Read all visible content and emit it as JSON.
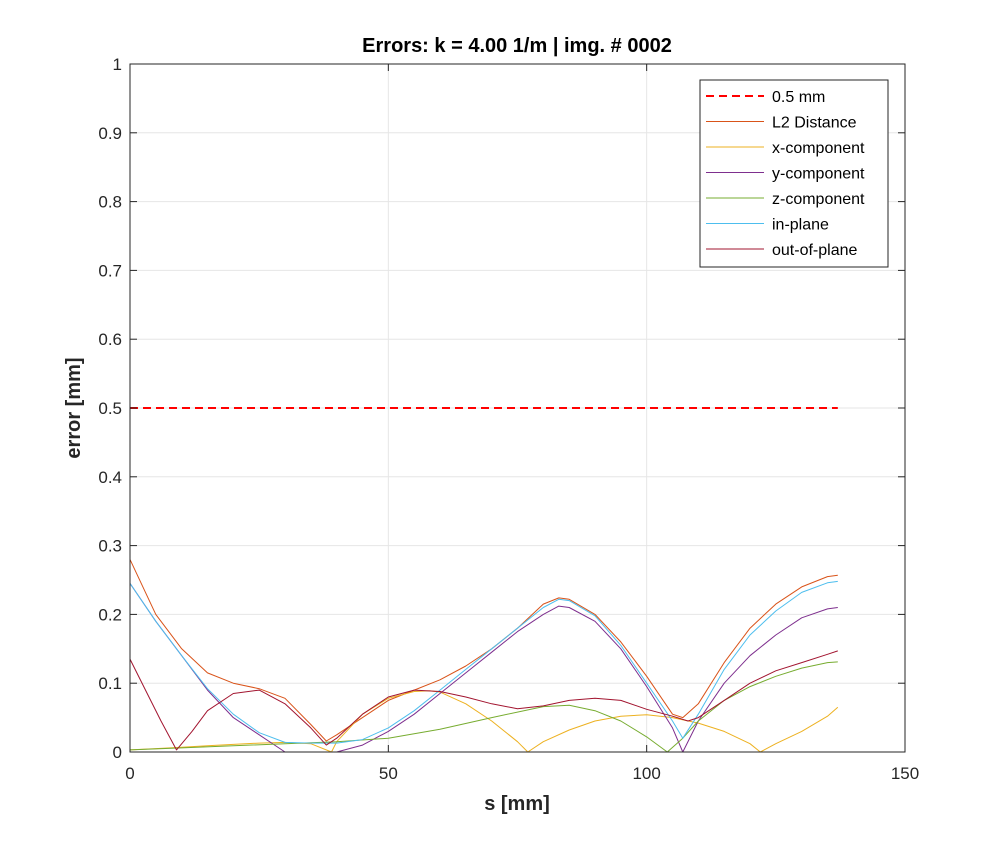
{
  "chart_data": {
    "type": "line",
    "title": "Errors: k = 4.00 1/m | img. # 0002",
    "xlabel": "s [mm]",
    "ylabel": "error [mm]",
    "xlim": [
      0,
      150
    ],
    "ylim": [
      0,
      1
    ],
    "xticks": [
      0,
      50,
      100,
      150
    ],
    "yticks": [
      0,
      0.1,
      0.2,
      0.3,
      0.4,
      0.5,
      0.6,
      0.7,
      0.8,
      0.9,
      1
    ],
    "grid": true,
    "legend_position": "top-right",
    "series": [
      {
        "name": "0.5 mm",
        "color": "#ff0000",
        "dashed": true,
        "x": [
          0,
          137
        ],
        "y": [
          0.5,
          0.5
        ]
      },
      {
        "name": "L2 Distance",
        "color": "#d95319",
        "x": [
          0,
          5,
          10,
          15,
          20,
          25,
          30,
          35,
          38,
          40,
          45,
          50,
          55,
          60,
          65,
          70,
          75,
          80,
          83,
          85,
          90,
          95,
          100,
          105,
          107,
          110,
          115,
          120,
          125,
          130,
          135,
          137
        ],
        "y": [
          0.28,
          0.2,
          0.15,
          0.115,
          0.1,
          0.092,
          0.078,
          0.04,
          0.016,
          0.025,
          0.05,
          0.075,
          0.09,
          0.105,
          0.125,
          0.15,
          0.18,
          0.215,
          0.224,
          0.222,
          0.2,
          0.16,
          0.11,
          0.055,
          0.05,
          0.07,
          0.13,
          0.18,
          0.215,
          0.24,
          0.255,
          0.257
        ]
      },
      {
        "name": "x-component",
        "color": "#edb120",
        "x": [
          0,
          5,
          10,
          15,
          20,
          25,
          30,
          35,
          39,
          40,
          45,
          50,
          55,
          58,
          60,
          65,
          70,
          75,
          77,
          80,
          85,
          90,
          95,
          100,
          105,
          110,
          115,
          120,
          122,
          125,
          130,
          135,
          137
        ],
        "y": [
          0.003,
          0.005,
          0.007,
          0.009,
          0.011,
          0.013,
          0.014,
          0.012,
          0.0,
          0.015,
          0.055,
          0.078,
          0.088,
          0.089,
          0.087,
          0.07,
          0.045,
          0.015,
          0.0,
          0.015,
          0.032,
          0.045,
          0.052,
          0.054,
          0.05,
          0.042,
          0.03,
          0.012,
          0.0,
          0.012,
          0.03,
          0.052,
          0.065
        ]
      },
      {
        "name": "y-component",
        "color": "#7e2f8e",
        "x": [
          0,
          5,
          10,
          15,
          20,
          25,
          30,
          35,
          40,
          45,
          50,
          55,
          60,
          65,
          70,
          75,
          80,
          83,
          85,
          90,
          95,
          100,
          105,
          107,
          110,
          115,
          120,
          125,
          130,
          135,
          137
        ],
        "y": [
          0.245,
          0.19,
          0.14,
          0.09,
          0.05,
          0.025,
          0.0,
          0.0,
          0.0,
          0.01,
          0.03,
          0.055,
          0.085,
          0.115,
          0.145,
          0.175,
          0.2,
          0.212,
          0.21,
          0.19,
          0.15,
          0.095,
          0.035,
          0.0,
          0.045,
          0.1,
          0.14,
          0.17,
          0.195,
          0.208,
          0.21
        ]
      },
      {
        "name": "z-component",
        "color": "#77ac30",
        "x": [
          0,
          10,
          20,
          30,
          40,
          50,
          60,
          70,
          80,
          85,
          90,
          95,
          100,
          104,
          107,
          110,
          115,
          120,
          125,
          130,
          135,
          137
        ],
        "y": [
          0.003,
          0.006,
          0.009,
          0.012,
          0.015,
          0.02,
          0.033,
          0.05,
          0.066,
          0.068,
          0.06,
          0.045,
          0.022,
          0.0,
          0.02,
          0.045,
          0.075,
          0.095,
          0.11,
          0.122,
          0.13,
          0.131
        ]
      },
      {
        "name": "in-plane",
        "color": "#4dbeee",
        "x": [
          0,
          5,
          10,
          15,
          20,
          25,
          30,
          35,
          40,
          45,
          50,
          55,
          60,
          65,
          70,
          75,
          80,
          83,
          85,
          90,
          95,
          100,
          105,
          107,
          110,
          115,
          120,
          125,
          130,
          135,
          137
        ],
        "y": [
          0.245,
          0.19,
          0.14,
          0.092,
          0.055,
          0.028,
          0.014,
          0.013,
          0.013,
          0.018,
          0.035,
          0.06,
          0.09,
          0.12,
          0.15,
          0.18,
          0.21,
          0.222,
          0.22,
          0.198,
          0.155,
          0.1,
          0.045,
          0.02,
          0.055,
          0.12,
          0.17,
          0.205,
          0.232,
          0.246,
          0.248
        ]
      },
      {
        "name": "out-of-plane",
        "color": "#a2142f",
        "x": [
          0,
          3,
          6,
          9,
          12,
          15,
          20,
          25,
          30,
          35,
          38,
          40,
          45,
          50,
          55,
          60,
          65,
          70,
          75,
          80,
          85,
          90,
          95,
          100,
          105,
          108,
          110,
          115,
          120,
          125,
          130,
          135,
          137
        ],
        "y": [
          0.135,
          0.09,
          0.045,
          0.003,
          0.03,
          0.06,
          0.085,
          0.09,
          0.07,
          0.035,
          0.01,
          0.02,
          0.055,
          0.08,
          0.09,
          0.088,
          0.08,
          0.07,
          0.063,
          0.067,
          0.075,
          0.078,
          0.075,
          0.062,
          0.052,
          0.045,
          0.05,
          0.075,
          0.1,
          0.118,
          0.13,
          0.142,
          0.147
        ]
      }
    ]
  }
}
